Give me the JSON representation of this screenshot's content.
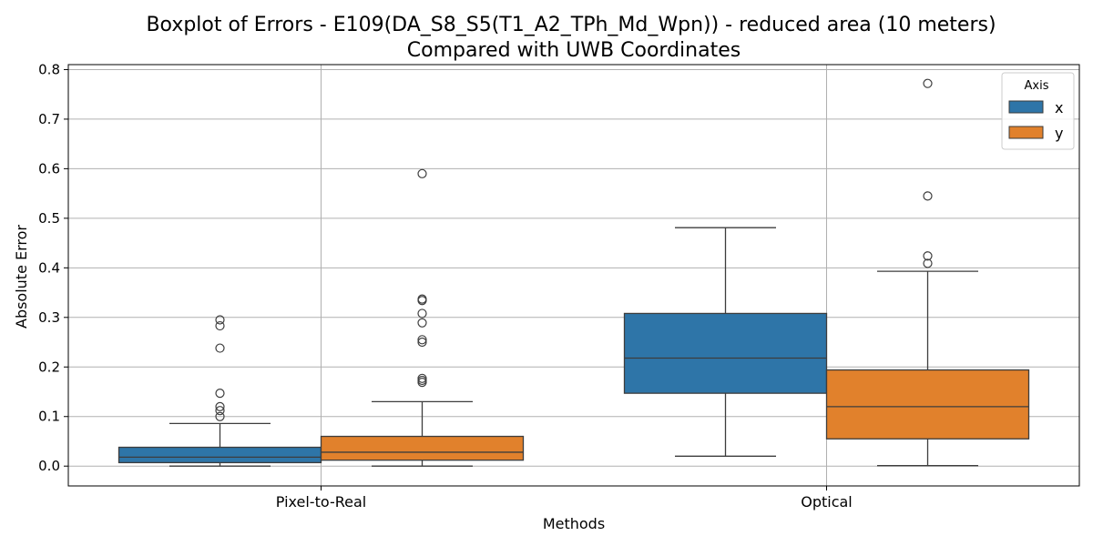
{
  "chart_data": {
    "type": "boxplot",
    "title": "Boxplot of Errors - E109(DA_S8_S5(T1_A2_TPh_Md_Wpn)) - reduced area (10 meters)",
    "subtitle": "Compared with UWB Coordinates",
    "xlabel": "Methods",
    "ylabel": "Absolute Error",
    "ylim": [
      -0.04,
      0.81
    ],
    "yticks": [
      "0.0",
      "0.1",
      "0.2",
      "0.3",
      "0.4",
      "0.5",
      "0.6",
      "0.7",
      "0.8"
    ],
    "grid": true,
    "categories": [
      "Pixel-to-Real",
      "Optical"
    ],
    "legend": {
      "title": "Axis",
      "placement": "top-right"
    },
    "series": [
      {
        "name": "x",
        "color": "#2e75a8",
        "boxes": [
          {
            "category": "Pixel-to-Real",
            "whisker_low": 0.0,
            "q1": 0.007,
            "median": 0.018,
            "q3": 0.038,
            "whisker_high": 0.086,
            "outliers": [
              0.295,
              0.283,
              0.238,
              0.147,
              0.12,
              0.112,
              0.1
            ]
          },
          {
            "category": "Optical",
            "whisker_low": 0.02,
            "q1": 0.147,
            "median": 0.218,
            "q3": 0.308,
            "whisker_high": 0.481,
            "outliers": []
          }
        ]
      },
      {
        "name": "y",
        "color": "#e1812c",
        "boxes": [
          {
            "category": "Pixel-to-Real",
            "whisker_low": 0.0,
            "q1": 0.012,
            "median": 0.028,
            "q3": 0.06,
            "whisker_high": 0.13,
            "outliers": [
              0.59,
              0.337,
              0.334,
              0.308,
              0.289,
              0.255,
              0.25,
              0.177,
              0.173,
              0.169
            ]
          },
          {
            "category": "Optical",
            "whisker_low": 0.001,
            "q1": 0.055,
            "median": 0.12,
            "q3": 0.194,
            "whisker_high": 0.393,
            "outliers": [
              0.772,
              0.545,
              0.424,
              0.409
            ]
          }
        ]
      }
    ]
  }
}
